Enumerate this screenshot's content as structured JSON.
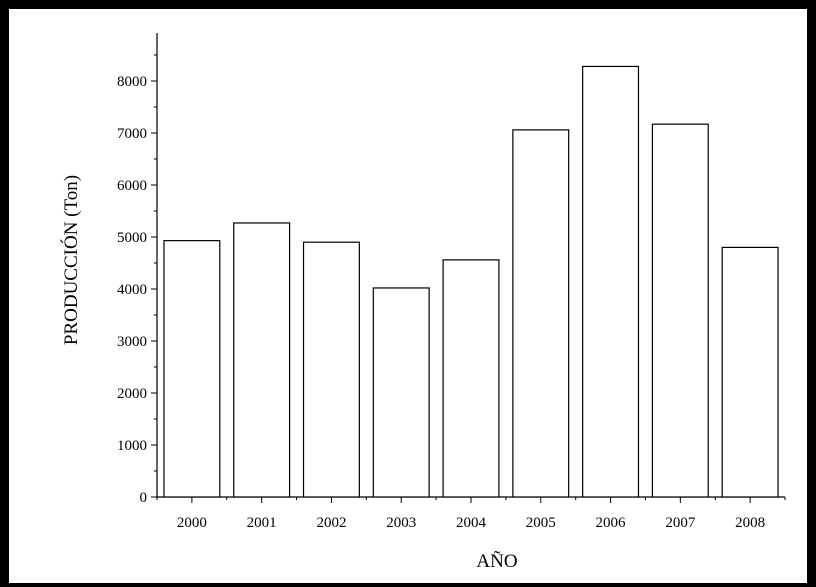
{
  "chart_data": {
    "type": "bar",
    "title": "",
    "xlabel": "AÑO",
    "ylabel": "PRODUCCIÓN (Ton)",
    "categories": [
      "2000",
      "2001",
      "2002",
      "2003",
      "2004",
      "2005",
      "2006",
      "2007",
      "2008"
    ],
    "values": [
      4930,
      5270,
      4900,
      4020,
      4560,
      7060,
      8280,
      7170,
      4800
    ],
    "ylim": [
      0,
      9000
    ],
    "yticks": [
      0,
      1000,
      2000,
      3000,
      4000,
      5000,
      6000,
      7000,
      8000
    ],
    "yticks_labels": [
      "0",
      "1000",
      "2000",
      "3000",
      "4000",
      "5000",
      "6000",
      "7000",
      "8000"
    ],
    "grid": false,
    "bar_fill": "#ffffff",
    "bar_stroke": "#000000"
  }
}
